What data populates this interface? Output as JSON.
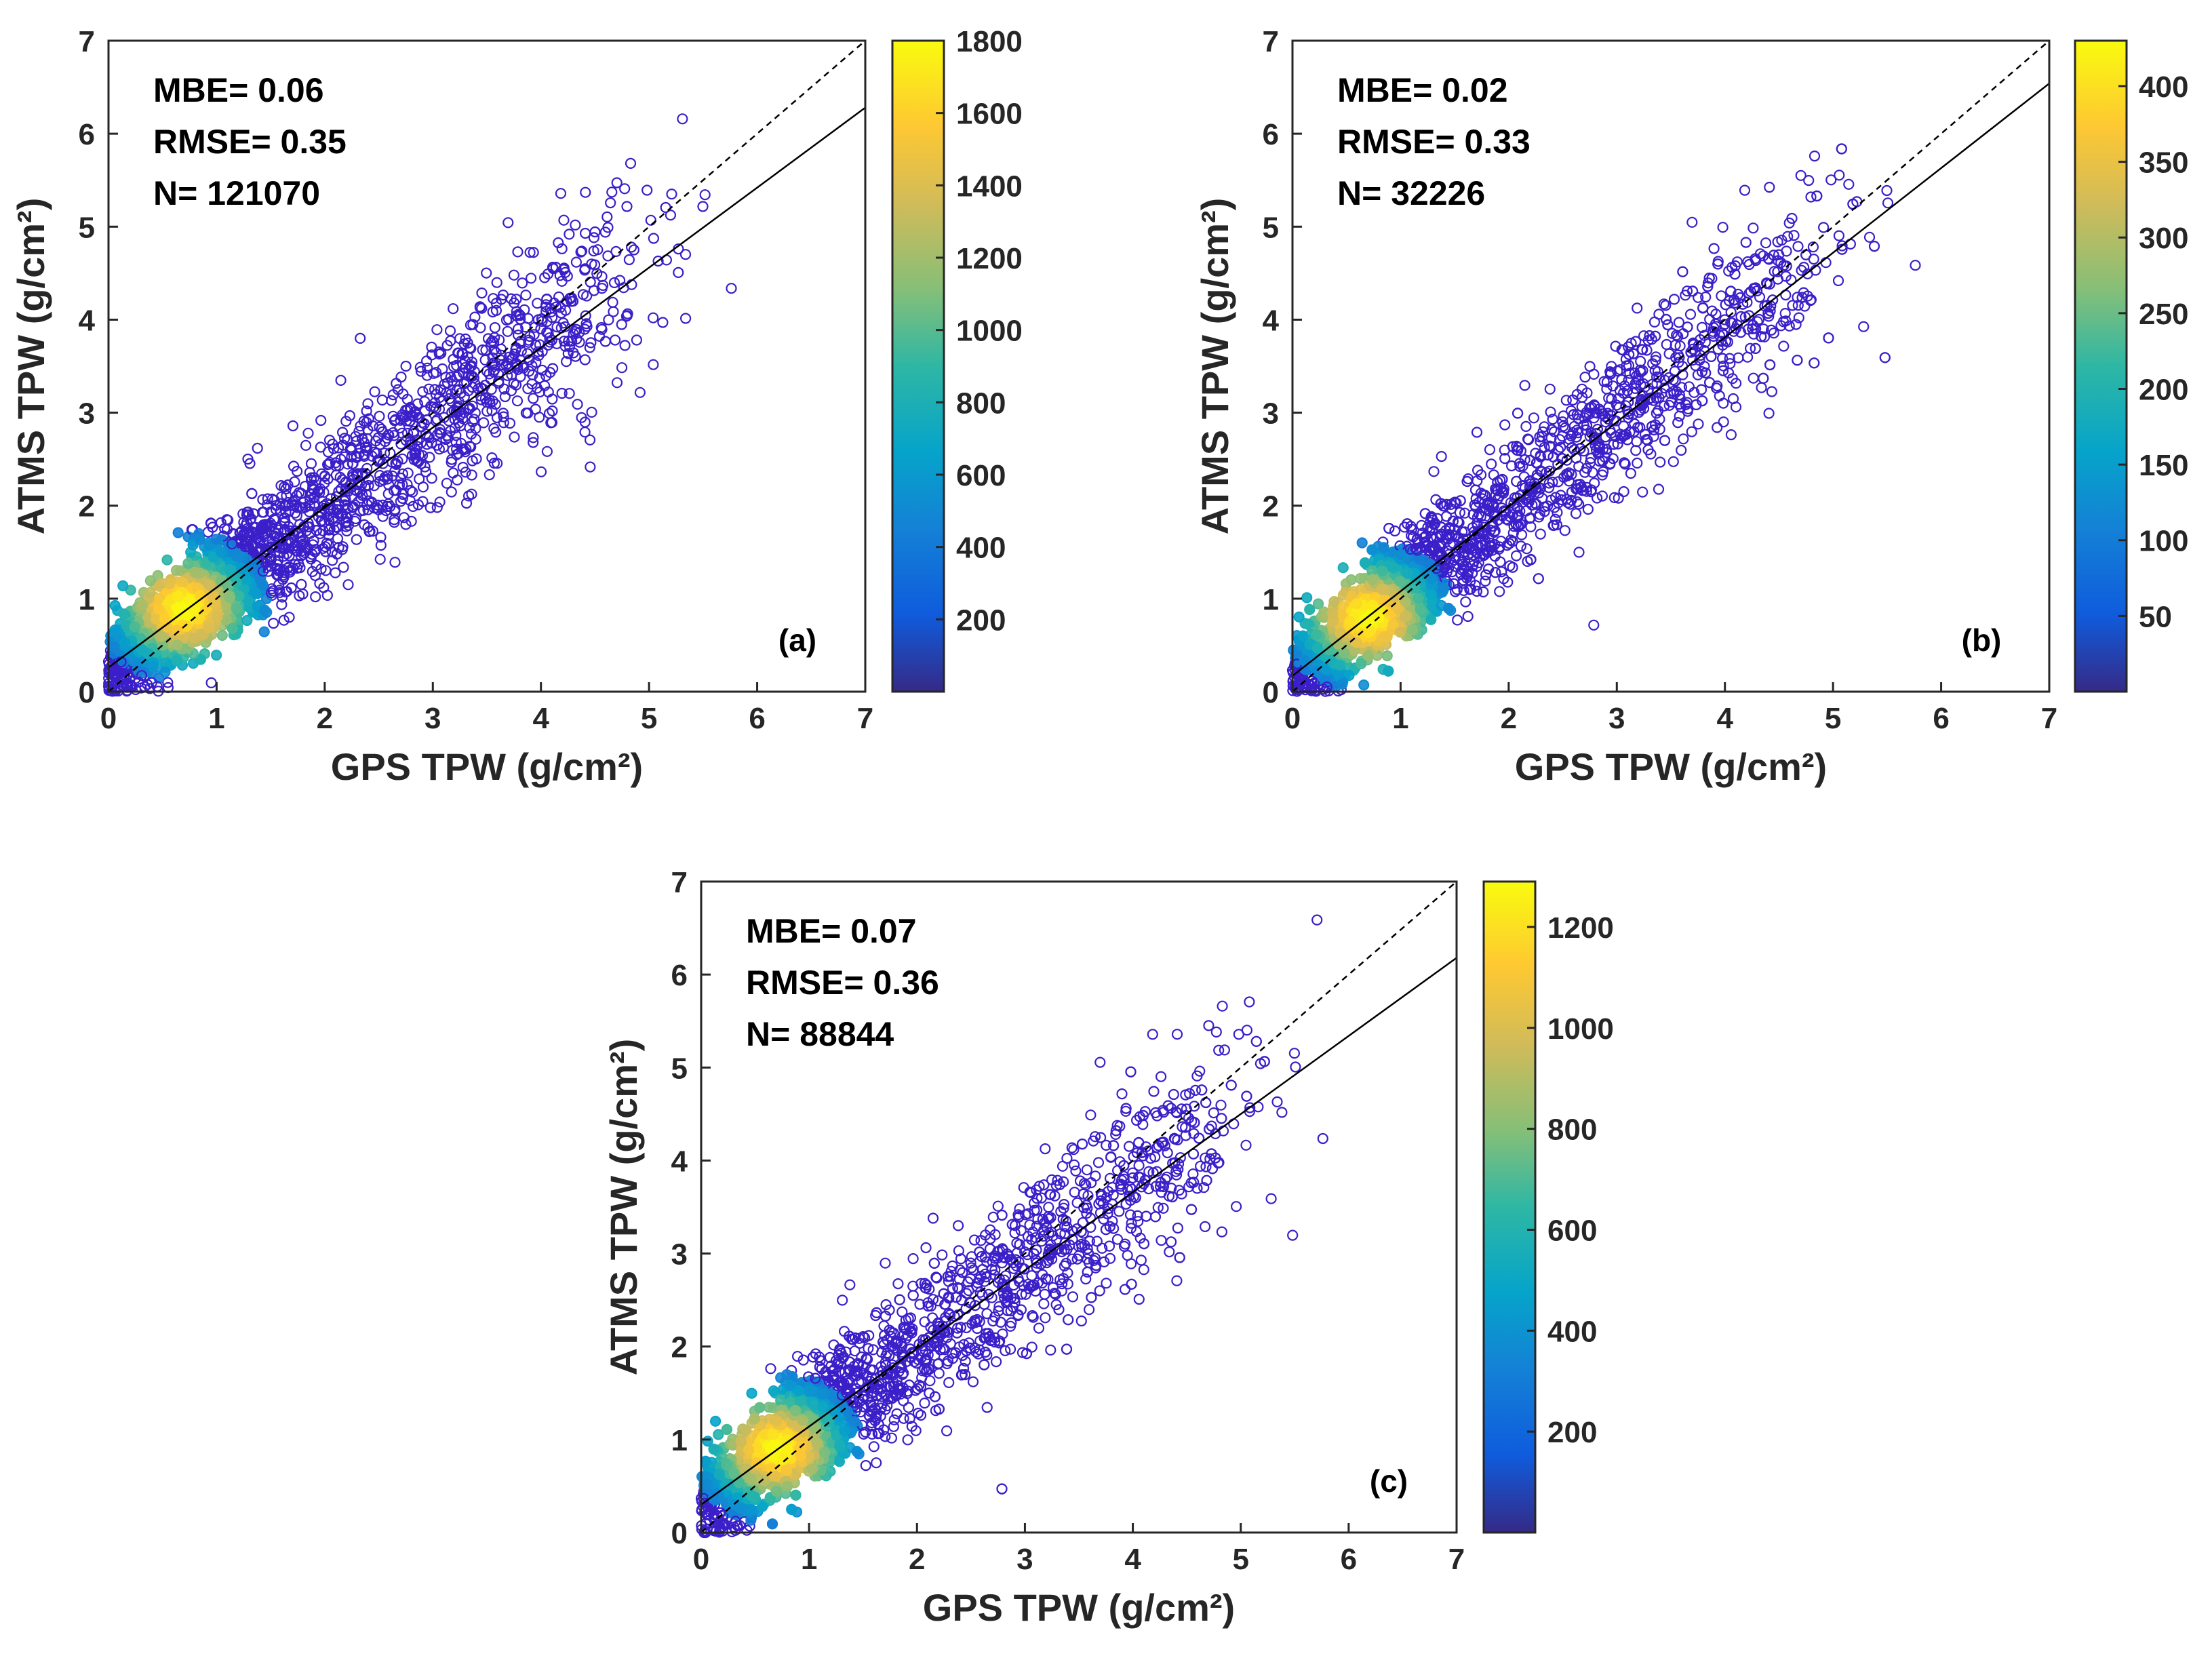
{
  "chart_data": [
    {
      "type": "scatter",
      "panel_label": "(a)",
      "xlabel": "GPS TPW (g/cm²)",
      "ylabel": "ATMS TPW (g/cm²)",
      "xlim": [
        0,
        7
      ],
      "ylim": [
        0,
        7
      ],
      "xticks": [
        0,
        1,
        2,
        3,
        4,
        5,
        6,
        7
      ],
      "yticks": [
        0,
        1,
        2,
        3,
        4,
        5,
        6,
        7
      ],
      "stats": {
        "mbe": "MBE= 0.06",
        "rmse": "RMSE= 0.35",
        "n": "N= 121070"
      },
      "fit_line": {
        "slope": 0.86,
        "intercept": 0.26
      },
      "identity_line": {
        "slope": 1,
        "intercept": 0
      },
      "colorbar": {
        "min": 0,
        "max": 1800,
        "ticks": [
          200,
          400,
          600,
          800,
          1000,
          1200,
          1400,
          1600,
          1800
        ]
      },
      "density_peak": {
        "x": 0.7,
        "y": 0.9,
        "count": 1800
      },
      "density_spread": 0.35
    },
    {
      "type": "scatter",
      "panel_label": "(b)",
      "xlabel": "GPS TPW (g/cm²)",
      "ylabel": "ATMS TPW (g/cm²)",
      "xlim": [
        0,
        7
      ],
      "ylim": [
        0,
        7
      ],
      "xticks": [
        0,
        1,
        2,
        3,
        4,
        5,
        6,
        7
      ],
      "yticks": [
        0,
        1,
        2,
        3,
        4,
        5,
        6,
        7
      ],
      "stats": {
        "mbe": "MBE= 0.02",
        "rmse": "RMSE= 0.33",
        "n": "N= 32226"
      },
      "fit_line": {
        "slope": 0.91,
        "intercept": 0.17
      },
      "identity_line": {
        "slope": 1,
        "intercept": 0
      },
      "colorbar": {
        "min": 0,
        "max": 430,
        "ticks": [
          50,
          100,
          150,
          200,
          250,
          300,
          350,
          400
        ]
      },
      "density_peak": {
        "x": 0.7,
        "y": 0.8,
        "count": 430
      },
      "density_spread": 0.33
    },
    {
      "type": "scatter",
      "panel_label": "(c)",
      "xlabel": "GPS TPW (g/cm²)",
      "ylabel": "ATMS TPW (g/cm²)",
      "xlim": [
        0,
        7
      ],
      "ylim": [
        0,
        7
      ],
      "xticks": [
        0,
        1,
        2,
        3,
        4,
        5,
        6,
        7
      ],
      "yticks": [
        0,
        1,
        2,
        3,
        4,
        5,
        6,
        7
      ],
      "stats": {
        "mbe": "MBE= 0.07",
        "rmse": "RMSE= 0.36",
        "n": "N= 88844"
      },
      "fit_line": {
        "slope": 0.84,
        "intercept": 0.3
      },
      "identity_line": {
        "slope": 1,
        "intercept": 0
      },
      "colorbar": {
        "min": 0,
        "max": 1290,
        "ticks": [
          200,
          400,
          600,
          800,
          1000,
          1200
        ]
      },
      "density_peak": {
        "x": 0.7,
        "y": 0.9,
        "count": 1290
      },
      "density_spread": 0.36
    }
  ],
  "colors": {
    "marker": "#3b1fc9",
    "parula": [
      "#352a87",
      "#0f5cdd",
      "#1481d6",
      "#06a4ca",
      "#2eb7a4",
      "#87bf77",
      "#d1bb59",
      "#fec832",
      "#f9fb0e"
    ],
    "axis": "#262626",
    "fit_line": "#000000"
  }
}
